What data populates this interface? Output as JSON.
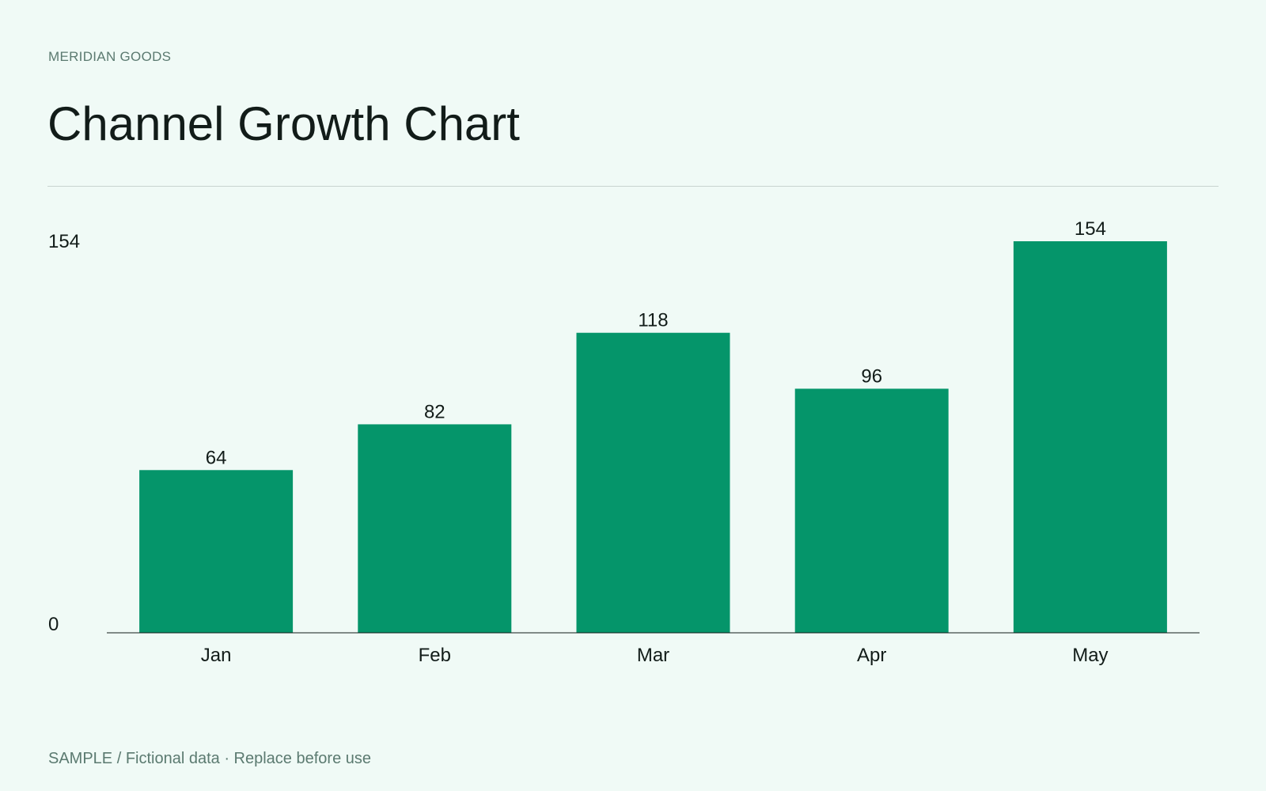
{
  "brand": "MERIDIAN GOODS",
  "title": "Channel Growth Chart",
  "footer": "SAMPLE / Fictional data · Replace before use",
  "colors": {
    "background": "#f0faf6",
    "bar": "#05956a",
    "text": "#121c19",
    "muted": "#5b7a70"
  },
  "chart_data": {
    "type": "bar",
    "title": "Channel Growth Chart",
    "xlabel": "",
    "ylabel": "",
    "categories": [
      "Jan",
      "Feb",
      "Mar",
      "Apr",
      "May"
    ],
    "values": [
      64,
      82,
      118,
      96,
      154
    ],
    "ylim": [
      0,
      154
    ],
    "y_tick_labels": [
      "0",
      "154"
    ],
    "data_labels": true,
    "grid": false,
    "legend": "none"
  }
}
